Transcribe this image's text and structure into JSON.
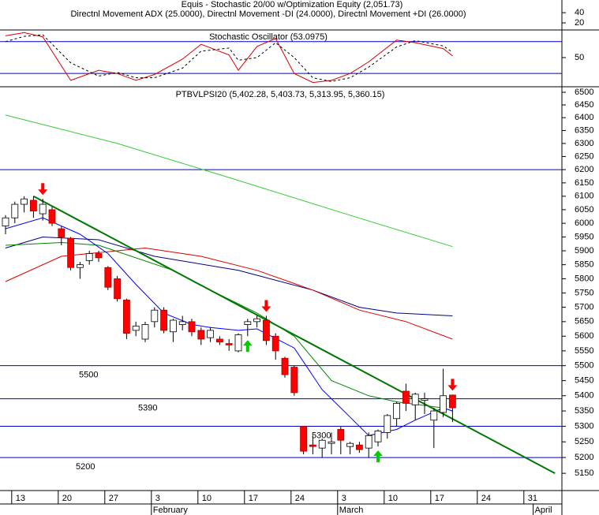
{
  "chart_data": [
    {
      "type": "line",
      "header": "Equis - Stochastic 20/00 w/Optimization Equity (2,051.73)",
      "title": "Directnl Movement ADX (25.0000), Directnl Movement -DI (24.0000), Directnl Movement +DI (26.0000)",
      "ylim": [
        6,
        65
      ],
      "yticks": [
        20,
        40
      ]
    },
    {
      "type": "line",
      "title": "Stochastic Oscillator (53.0975)",
      "ylim": [
        -5,
        102
      ],
      "yticks": [
        50
      ],
      "levels": [
        80,
        20
      ],
      "level_color": "#0000cc",
      "series": [
        {
          "color": "#dd0000",
          "dash": false,
          "x": [
            0,
            2,
            4,
            7,
            10,
            12,
            14,
            16,
            19,
            21,
            24,
            25,
            27,
            29,
            31,
            33,
            35,
            37,
            39,
            42,
            44,
            47,
            48
          ],
          "values": [
            91,
            97,
            89,
            7,
            26,
            20,
            7,
            18,
            47,
            75,
            55,
            26,
            71,
            86,
            20,
            3,
            7,
            20,
            42,
            83,
            78,
            67,
            53.1
          ]
        },
        {
          "color": "#000000",
          "dash": true,
          "x": [
            0,
            2,
            4,
            7,
            10,
            12,
            14,
            16,
            19,
            21,
            24,
            25,
            27,
            29,
            31,
            33,
            35,
            37,
            39,
            42,
            44,
            47,
            48
          ],
          "values": [
            80,
            90,
            93,
            40,
            15,
            22,
            12,
            12,
            30,
            62,
            68,
            45,
            50,
            78,
            50,
            12,
            5,
            12,
            32,
            70,
            82,
            72,
            60
          ]
        }
      ]
    },
    {
      "type": "candlestick",
      "title": "PTBVLPSI20 (5,402.28, 5,403.73, 5,313.95, 5,360.15)",
      "log_scale": true,
      "ylim": [
        5096,
        6522
      ],
      "yticks": [
        5150,
        5200,
        5250,
        5300,
        5350,
        5400,
        5450,
        5500,
        5550,
        5600,
        5650,
        5700,
        5750,
        5800,
        5850,
        5900,
        5950,
        6000,
        6050,
        6100,
        6150,
        6200,
        6250,
        6300,
        6350,
        6400,
        6450,
        6500
      ],
      "categories": [
        null,
        "13",
        null,
        null,
        null,
        null,
        "20",
        null,
        null,
        null,
        null,
        "27",
        null,
        null,
        null,
        null,
        "3",
        null,
        null,
        null,
        null,
        "10",
        null,
        null,
        null,
        null,
        "17",
        null,
        null,
        null,
        null,
        "24",
        null,
        null,
        null,
        null,
        "3",
        null,
        null,
        null,
        null,
        "10",
        null,
        null,
        null,
        null,
        "17",
        null,
        null,
        null,
        null,
        "24",
        null,
        null,
        null,
        null,
        "31",
        null,
        null,
        null
      ],
      "months": [
        null,
        null,
        null,
        null,
        null,
        null,
        null,
        null,
        null,
        null,
        null,
        null,
        null,
        null,
        null,
        null,
        "February",
        null,
        null,
        null,
        null,
        null,
        null,
        null,
        null,
        null,
        null,
        null,
        null,
        null,
        null,
        null,
        null,
        null,
        null,
        null,
        "March",
        null,
        null,
        null,
        null,
        null,
        null,
        null,
        null,
        null,
        null,
        null,
        null,
        null,
        null,
        null,
        null,
        null,
        null,
        null,
        null,
        "April",
        null,
        null
      ],
      "open": [
        5990,
        6020,
        6070,
        6085,
        6035,
        6050,
        5980,
        5945,
        5840,
        5865,
        5890,
        5840,
        5800,
        5725,
        5620,
        5590,
        5650,
        5690,
        5615,
        5640,
        5650,
        5620,
        5595,
        5590,
        5575,
        5550,
        5640,
        5650,
        5655,
        5600,
        5525,
        5495,
        5300,
        5240,
        5230,
        5245,
        5290,
        5235,
        5240,
        5230,
        5250,
        5280,
        5325,
        5415,
        5370,
        5385,
        5320,
        5345,
        5402.28,
        null,
        null,
        null,
        null,
        null,
        null,
        null,
        null,
        null,
        null,
        null
      ],
      "high": [
        6030,
        6080,
        6100,
        6100,
        6090,
        6060,
        5990,
        5950,
        5860,
        5900,
        5900,
        5845,
        5810,
        5730,
        5650,
        5650,
        5700,
        5700,
        5660,
        5670,
        5660,
        5630,
        5630,
        5600,
        5590,
        5610,
        5660,
        5670,
        5670,
        5610,
        5530,
        5500,
        5300,
        5270,
        5260,
        5280,
        5300,
        5250,
        5250,
        5280,
        5290,
        5340,
        5380,
        5440,
        5410,
        5410,
        5360,
        5490,
        5403.73,
        null,
        null,
        null,
        null,
        null,
        null,
        null,
        null,
        null,
        null,
        null
      ],
      "low": [
        5960,
        6000,
        6040,
        6020,
        6010,
        5990,
        5920,
        5830,
        5800,
        5850,
        5860,
        5760,
        5720,
        5590,
        5600,
        5580,
        5630,
        5610,
        5580,
        5620,
        5600,
        5570,
        5580,
        5570,
        5550,
        5545,
        5600,
        5630,
        5570,
        5520,
        5460,
        5400,
        5210,
        5210,
        5200,
        5210,
        5210,
        5210,
        5215,
        5200,
        5235,
        5260,
        5300,
        5350,
        5320,
        5340,
        5230,
        5330,
        5313.95,
        null,
        null,
        null,
        null,
        null,
        null,
        null,
        null,
        null,
        null,
        null
      ],
      "close": [
        6020,
        6070,
        6090,
        6045,
        6070,
        6000,
        5950,
        5840,
        5850,
        5890,
        5875,
        5770,
        5730,
        5610,
        5635,
        5640,
        5690,
        5620,
        5655,
        5650,
        5615,
        5590,
        5620,
        5580,
        5570,
        5605,
        5650,
        5660,
        5585,
        5550,
        5470,
        5410,
        5220,
        5235,
        5255,
        5250,
        5255,
        5245,
        5225,
        5270,
        5285,
        5335,
        5375,
        5375,
        5405,
        5390,
        5350,
        5400,
        5360.15,
        null,
        null,
        null,
        null,
        null,
        null,
        null,
        null,
        null,
        null,
        null
      ],
      "up_color": "#ffffff",
      "down_color": "#ff0000",
      "levels": [
        {
          "value": 6200
        },
        {
          "value": 5500,
          "labeled": true
        },
        {
          "value": 5390,
          "labeled": true
        },
        {
          "value": 5300,
          "labeled": true
        },
        {
          "value": 5200,
          "labeled": true
        }
      ],
      "level_color": "#0000cc",
      "series": [
        {
          "color": "#33cc33",
          "width": 1,
          "x": [
            0,
            12,
            24,
            36,
            48
          ],
          "values": [
            6410,
            6300,
            6170,
            6040,
            5915
          ]
        },
        {
          "color": "#000080",
          "width": 1,
          "x": [
            0,
            4,
            10,
            16,
            25,
            33,
            38,
            42,
            48
          ],
          "values": [
            5910,
            5950,
            5940,
            5880,
            5830,
            5760,
            5700,
            5680,
            5670
          ]
        },
        {
          "color": "#dd0000",
          "width": 1,
          "x": [
            0,
            6,
            15,
            21,
            27,
            33,
            38,
            43,
            48
          ],
          "values": [
            5790,
            5880,
            5910,
            5880,
            5830,
            5760,
            5690,
            5650,
            5590
          ]
        },
        {
          "color": "#008800",
          "width": 1,
          "x": [
            0,
            6,
            10,
            18,
            22,
            27,
            31,
            35,
            39,
            42,
            47,
            48
          ],
          "values": [
            5920,
            5930,
            5920,
            5830,
            5760,
            5680,
            5600,
            5450,
            5400,
            5380,
            5360,
            5350
          ]
        },
        {
          "color": "#0000ff",
          "width": 1,
          "x": [
            0,
            4,
            8,
            11,
            14,
            17,
            20,
            22,
            25,
            27,
            31,
            34,
            37,
            39,
            42,
            44,
            47,
            48
          ],
          "values": [
            5980,
            6020,
            5960,
            5890,
            5780,
            5680,
            5640,
            5630,
            5620,
            5625,
            5560,
            5420,
            5330,
            5270,
            5290,
            5320,
            5360,
            5350
          ]
        },
        {
          "color": "#007700",
          "width": 2,
          "x": [
            3,
            59
          ],
          "values": [
            6100,
            5150
          ]
        }
      ],
      "signals": {
        "sell": [
          4,
          28,
          48
        ],
        "buy": [
          26,
          40
        ],
        "sell_color": "#ff0000",
        "buy_color": "#00cc00"
      }
    }
  ]
}
